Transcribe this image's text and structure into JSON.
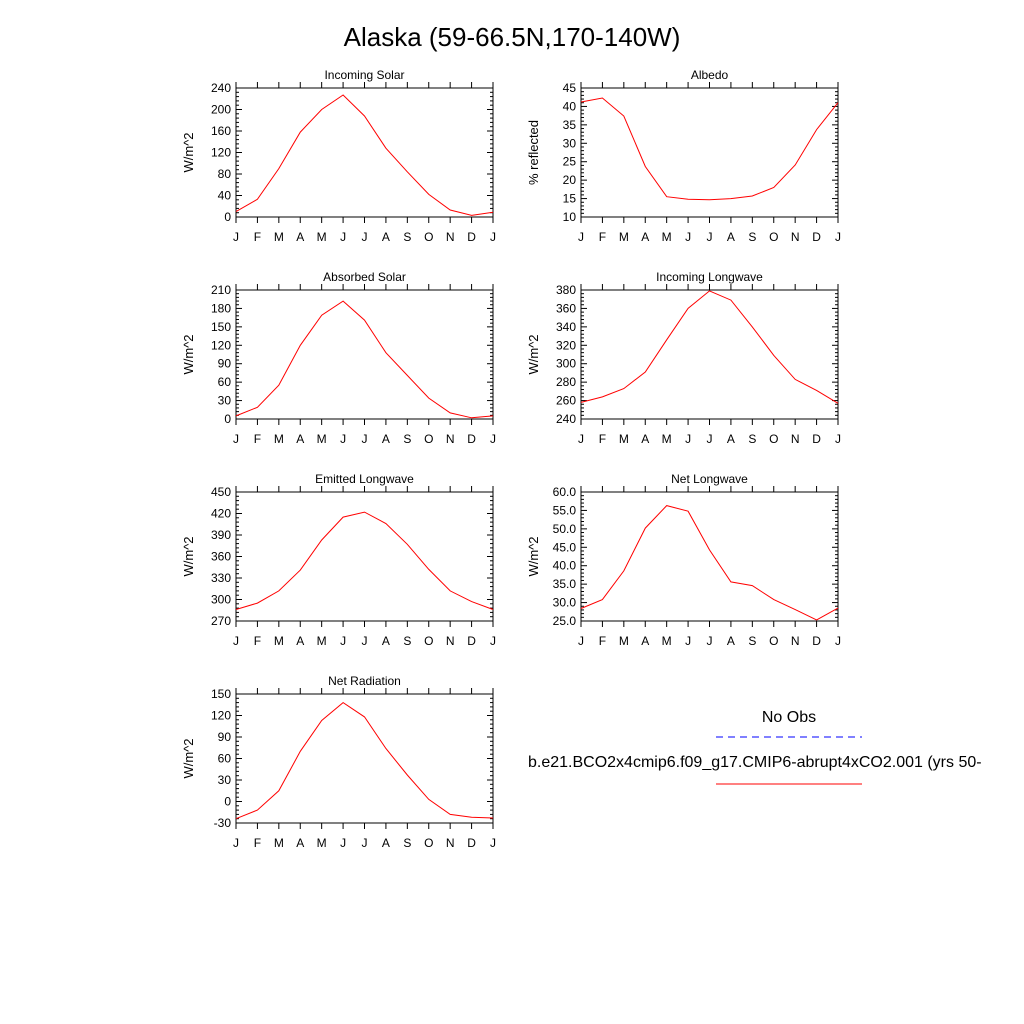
{
  "figure": {
    "title": "Alaska (59-66.5N,170-140W)"
  },
  "legend": {
    "obs_label": "No Obs",
    "obs_color": "#0000ff",
    "model_label": "b.e21.BCO2x4cmip6.f09_g17.CMIP6-abrupt4xCO2.001 (yrs 50-",
    "model_color": "#ff0000"
  },
  "chart_data": [
    {
      "type": "line",
      "title": "Incoming Solar",
      "ylabel": "W/m^2",
      "xlabel": "",
      "categories": [
        "J",
        "F",
        "M",
        "A",
        "M",
        "J",
        "J",
        "A",
        "S",
        "O",
        "N",
        "D",
        "J"
      ],
      "ylim": [
        0,
        240
      ],
      "yticks": [
        "0",
        "40",
        "80",
        "120",
        "160",
        "200",
        "240"
      ],
      "series": [
        {
          "values": [
            10,
            33,
            90,
            158,
            200,
            227,
            188,
            128,
            84,
            42,
            13,
            3,
            9
          ]
        }
      ]
    },
    {
      "type": "line",
      "title": "Albedo",
      "ylabel": "% reflected",
      "xlabel": "",
      "categories": [
        "J",
        "F",
        "M",
        "A",
        "M",
        "J",
        "J",
        "A",
        "S",
        "O",
        "N",
        "D",
        "J"
      ],
      "ylim": [
        10,
        45
      ],
      "yticks": [
        "10",
        "15",
        "20",
        "25",
        "30",
        "35",
        "40",
        "45"
      ],
      "series": [
        {
          "values": [
            41.2,
            42.3,
            37.4,
            23.7,
            15.5,
            14.8,
            14.7,
            15.0,
            15.7,
            18.0,
            24.1,
            33.7,
            41.0
          ]
        }
      ]
    },
    {
      "type": "line",
      "title": "Absorbed Solar",
      "ylabel": "W/m^2",
      "xlabel": "",
      "categories": [
        "J",
        "F",
        "M",
        "A",
        "M",
        "J",
        "J",
        "A",
        "S",
        "O",
        "N",
        "D",
        "J"
      ],
      "ylim": [
        0,
        210
      ],
      "yticks": [
        "0",
        "30",
        "60",
        "90",
        "120",
        "150",
        "180",
        "210"
      ],
      "series": [
        {
          "values": [
            5,
            19,
            55,
            120,
            169,
            192,
            161,
            108,
            71,
            34,
            10,
            2,
            5
          ]
        }
      ]
    },
    {
      "type": "line",
      "title": "Incoming Longwave",
      "ylabel": "W/m^2",
      "xlabel": "",
      "categories": [
        "J",
        "F",
        "M",
        "A",
        "M",
        "J",
        "J",
        "A",
        "S",
        "O",
        "N",
        "D",
        "J"
      ],
      "ylim": [
        240,
        380
      ],
      "yticks": [
        "240",
        "260",
        "280",
        "300",
        "320",
        "340",
        "360",
        "380"
      ],
      "series": [
        {
          "values": [
            258,
            264,
            273,
            291,
            326,
            360,
            379,
            369,
            340,
            309,
            283,
            271,
            257
          ]
        }
      ]
    },
    {
      "type": "line",
      "title": "Emitted Longwave",
      "ylabel": "W/m^2",
      "xlabel": "",
      "categories": [
        "J",
        "F",
        "M",
        "A",
        "M",
        "J",
        "J",
        "A",
        "S",
        "O",
        "N",
        "D",
        "J"
      ],
      "ylim": [
        270,
        450
      ],
      "yticks": [
        "270",
        "300",
        "330",
        "360",
        "390",
        "420",
        "450"
      ],
      "series": [
        {
          "values": [
            286,
            295,
            312,
            341,
            383,
            415,
            422,
            406,
            377,
            342,
            312,
            297,
            286
          ]
        }
      ]
    },
    {
      "type": "line",
      "title": "Net Longwave",
      "ylabel": "W/m^2",
      "xlabel": "",
      "categories": [
        "J",
        "F",
        "M",
        "A",
        "M",
        "J",
        "J",
        "A",
        "S",
        "O",
        "N",
        "D",
        "J"
      ],
      "ylim": [
        25.0,
        60.0
      ],
      "yticks": [
        "25.0",
        "30.0",
        "35.0",
        "40.0",
        "45.0",
        "50.0",
        "55.0",
        "60.0"
      ],
      "series": [
        {
          "values": [
            28.4,
            30.8,
            38.6,
            50.2,
            56.3,
            54.8,
            44.3,
            35.6,
            34.6,
            30.8,
            28.1,
            25.3,
            28.5
          ]
        }
      ]
    },
    {
      "type": "line",
      "title": "Net Radiation",
      "ylabel": "W/m^2",
      "xlabel": "",
      "categories": [
        "J",
        "F",
        "M",
        "A",
        "M",
        "J",
        "J",
        "A",
        "S",
        "O",
        "N",
        "D",
        "J"
      ],
      "ylim": [
        -30,
        150
      ],
      "yticks": [
        "-30",
        "0",
        "30",
        "60",
        "90",
        "120",
        "150"
      ],
      "series": [
        {
          "values": [
            -24,
            -12,
            15,
            70,
            113,
            138,
            118,
            74,
            37,
            3,
            -18,
            -22,
            -23
          ]
        }
      ]
    }
  ]
}
